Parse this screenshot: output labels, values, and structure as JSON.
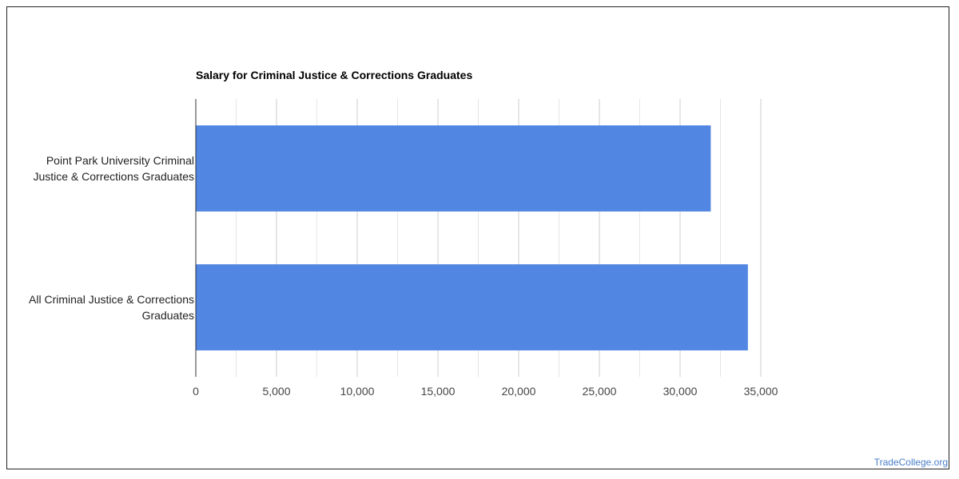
{
  "watermark": "TradeCollege.org",
  "chart_data": {
    "type": "bar",
    "orientation": "horizontal",
    "title": "Salary for Criminal Justice & Corrections Graduates",
    "categories": [
      [
        "Point Park University Criminal",
        "Justice & Corrections Graduates"
      ],
      [
        "All Criminal Justice & Corrections",
        "Graduates"
      ]
    ],
    "values": [
      31900,
      34200
    ],
    "xlim": [
      0,
      35000
    ],
    "xticks": [
      0,
      5000,
      10000,
      15000,
      20000,
      25000,
      30000,
      35000
    ],
    "xtick_labels": [
      "0",
      "5,000",
      "10,000",
      "15,000",
      "20,000",
      "25,000",
      "30,000",
      "35,000"
    ],
    "grid": true,
    "legend": "none",
    "bar_color": "#5286e3",
    "grid_color": "#cccccc",
    "minor_grid_color": "#e6e6e6",
    "axis_color": "#333333"
  }
}
